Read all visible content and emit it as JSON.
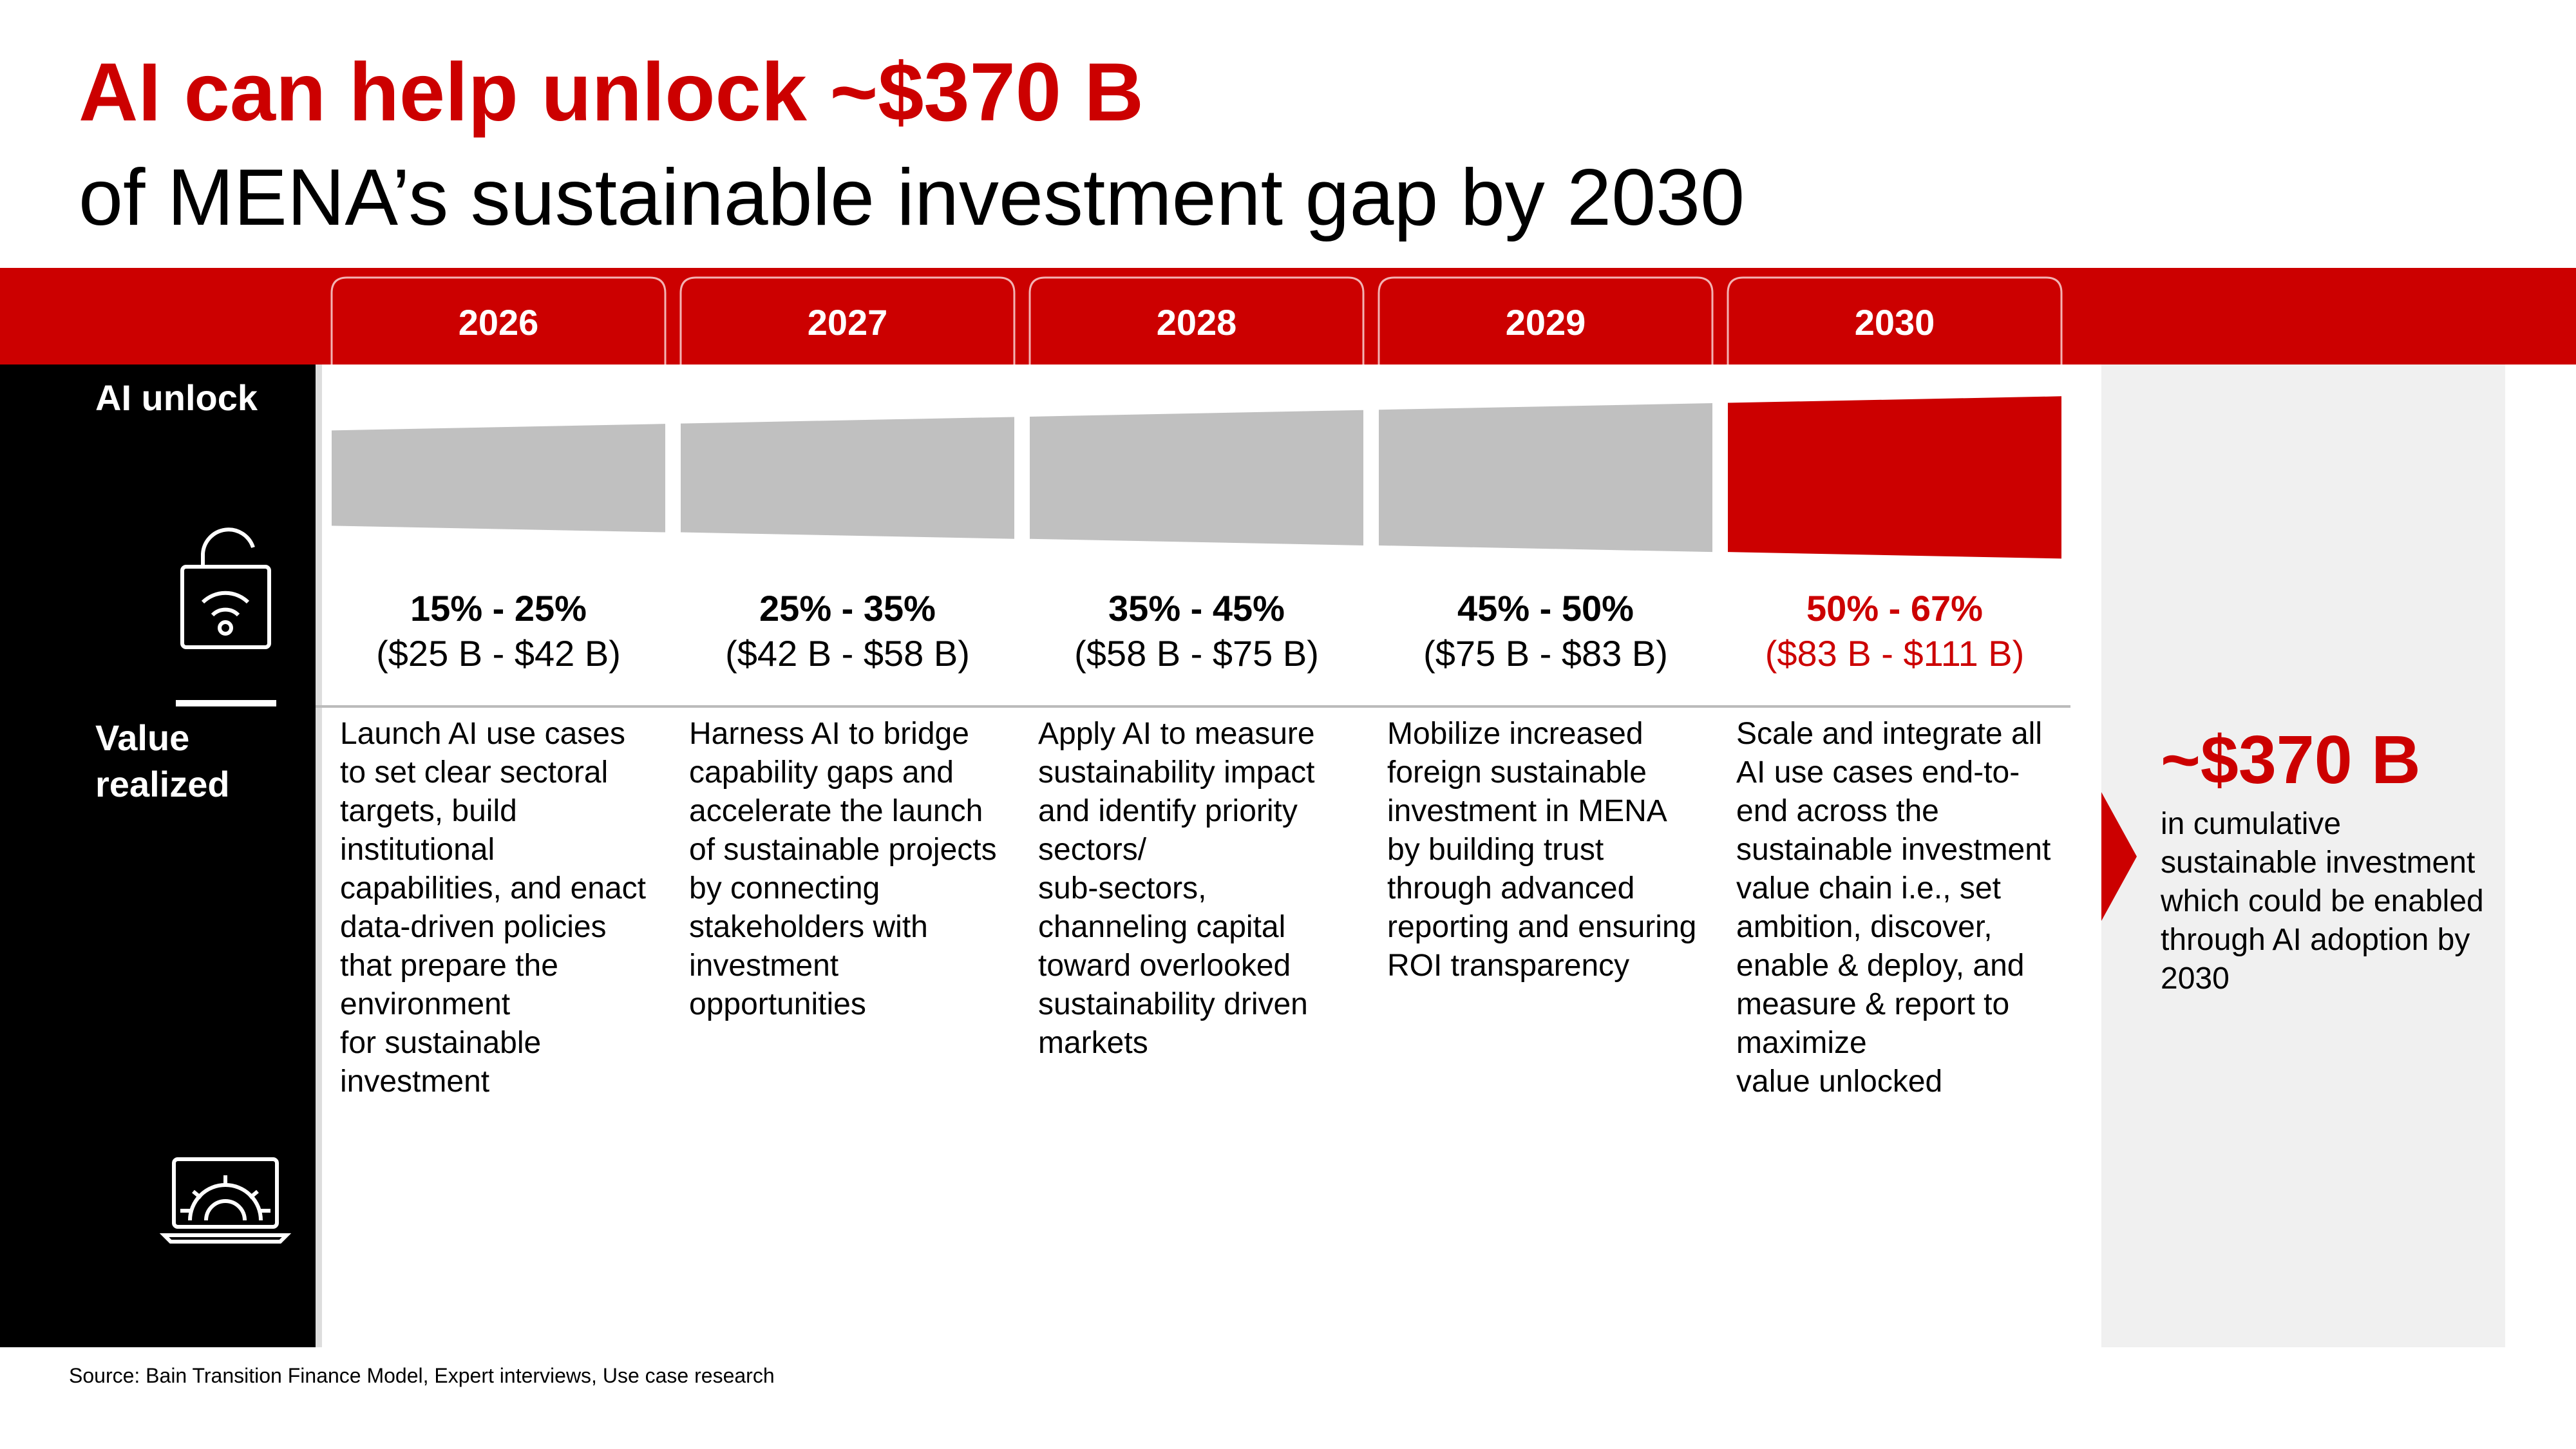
{
  "header": {
    "title": "AI can help unlock ~$370 B",
    "subtitle": "of MENA’s sustainable investment gap by 2030"
  },
  "row_labels": {
    "ai_unlock": "AI unlock",
    "value_realized": [
      "Value",
      "realized"
    ]
  },
  "columns": [
    {
      "year": "2026",
      "share": "15% - 25%",
      "value": "($25 B - $42 B)",
      "description": [
        "Launch AI use cases",
        "to set clear sectoral",
        "targets, build",
        "institutional",
        "capabilities, and enact",
        "data-driven policies",
        "that prepare the",
        "environment",
        "for sustainable",
        "investment"
      ]
    },
    {
      "year": "2027",
      "share": "25% - 35%",
      "value": "($42 B - $58 B)",
      "description": [
        "Harness AI to bridge",
        "capability gaps and",
        "accelerate the launch",
        "of sustainable projects",
        "by connecting",
        "stakeholders with",
        "investment",
        "opportunities"
      ]
    },
    {
      "year": "2028",
      "share": "35% - 45%",
      "value": "($58 B - $75 B)",
      "description": [
        "Apply AI to measure",
        "sustainability impact",
        "and identify priority",
        "sectors/",
        "sub-sectors,",
        "channeling capital",
        "toward overlooked",
        "sustainability driven",
        "markets"
      ]
    },
    {
      "year": "2029",
      "share": "45% - 50%",
      "value": "($75 B - $83 B)",
      "description": [
        "Mobilize increased",
        "foreign sustainable",
        "investment in MENA",
        "by building trust",
        "through advanced",
        "reporting and ensuring",
        "ROI transparency"
      ]
    },
    {
      "year": "2030",
      "share": "50% - 67%",
      "value": "($83 B - $111 B)",
      "description": [
        "Scale and integrate all",
        "AI use cases end-to-",
        "end across the",
        "sustainable investment",
        "value chain i.e., set",
        "ambition, discover,",
        "enable & deploy, and",
        "measure & report to",
        "maximize",
        "value unlocked"
      ]
    }
  ],
  "summary": {
    "total": "~$370 B",
    "description": [
      "in cumulative",
      "sustainable investment",
      "which could be enabled",
      "through AI adoption by",
      "2030"
    ]
  },
  "source": "Source: Bain Transition Finance Model, Expert interviews, Use case research"
}
